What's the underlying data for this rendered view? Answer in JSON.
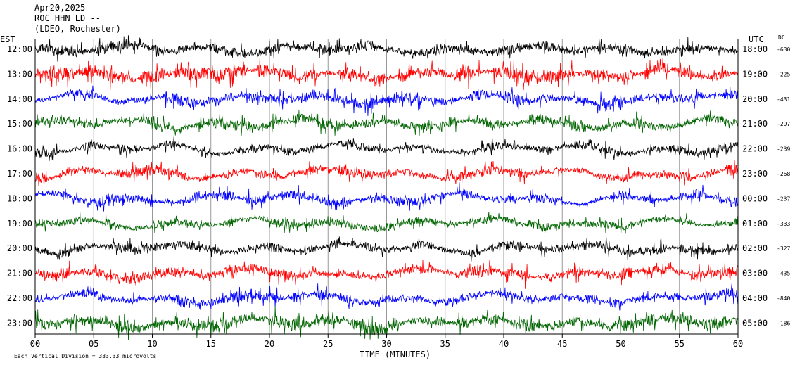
{
  "header": {
    "date": "Apr20,2025",
    "station": "ROC HHN LD --",
    "location": "(LDEO, Rochester)",
    "left_tz": "EST",
    "right_tz": "UTC",
    "dc_label": "DC"
  },
  "footer": {
    "scale_note": "Each Vertical Division =  333.33 microvolts"
  },
  "colors": {
    "cycle": [
      "#000000",
      "#ff0000",
      "#0000ff",
      "#006400"
    ],
    "grid": "#999999"
  },
  "chart_data": {
    "type": "line",
    "xlabel": "TIME (MINUTES)",
    "xlim": [
      0,
      60
    ],
    "x_ticks": [
      "00",
      "05",
      "10",
      "15",
      "20",
      "25",
      "30",
      "35",
      "40",
      "45",
      "50",
      "55",
      "60"
    ],
    "rows": [
      {
        "est": "12:00",
        "utc": "18:00",
        "dc": "-630",
        "amp": 0.55
      },
      {
        "est": "13:00",
        "utc": "19:00",
        "dc": "-225",
        "amp": 0.7
      },
      {
        "est": "14:00",
        "utc": "20:00",
        "dc": "-431",
        "amp": 0.55
      },
      {
        "est": "15:00",
        "utc": "21:00",
        "dc": "-297",
        "amp": 0.55
      },
      {
        "est": "16:00",
        "utc": "22:00",
        "dc": "-239",
        "amp": 0.45
      },
      {
        "est": "17:00",
        "utc": "23:00",
        "dc": "-268",
        "amp": 0.5
      },
      {
        "est": "18:00",
        "utc": "00:00",
        "dc": "-237",
        "amp": 0.5
      },
      {
        "est": "19:00",
        "utc": "01:00",
        "dc": "-333",
        "amp": 0.45
      },
      {
        "est": "20:00",
        "utc": "02:00",
        "dc": "-327",
        "amp": 0.5
      },
      {
        "est": "21:00",
        "utc": "03:00",
        "dc": "-435",
        "amp": 0.55
      },
      {
        "est": "22:00",
        "utc": "04:00",
        "dc": "-840",
        "amp": 0.55
      },
      {
        "est": "23:00",
        "utc": "05:00",
        "dc": "-186",
        "amp": 0.7
      }
    ]
  }
}
